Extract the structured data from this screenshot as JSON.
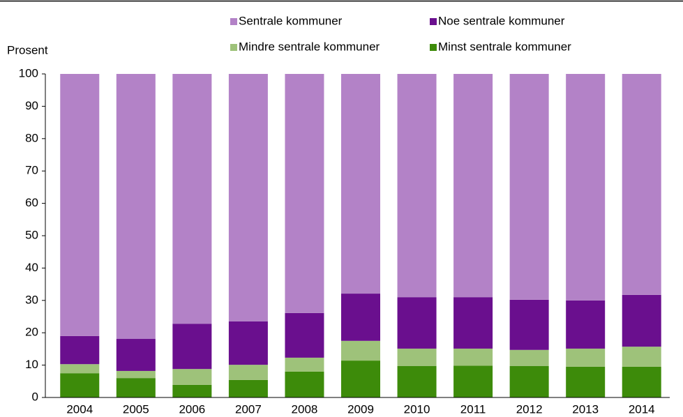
{
  "chart_data": {
    "type": "stacked_bar",
    "y_label": "Prosent",
    "categories": [
      "2004",
      "2005",
      "2006",
      "2007",
      "2008",
      "2009",
      "2010",
      "2011",
      "2012",
      "2013",
      "2014"
    ],
    "series": [
      {
        "name": "Sentrale kommuner",
        "color": "#b382c7",
        "values": [
          81.0,
          81.9,
          77.2,
          76.5,
          73.9,
          67.9,
          69.0,
          69.0,
          69.8,
          70.0,
          68.3
        ]
      },
      {
        "name": "Noe sentrale kommuner",
        "color": "#6a0f8e",
        "values": [
          8.7,
          9.9,
          14.0,
          13.4,
          13.8,
          14.6,
          15.9,
          15.9,
          15.5,
          14.9,
          16.0
        ]
      },
      {
        "name": "Mindre sentrale kommuner",
        "color": "#9ec27a",
        "values": [
          2.8,
          2.2,
          4.9,
          4.7,
          4.3,
          6.1,
          5.4,
          5.3,
          5.0,
          5.6,
          6.2
        ]
      },
      {
        "name": "Minst sentrale kommuner",
        "color": "#3d8b0a",
        "values": [
          7.5,
          6.0,
          3.9,
          5.4,
          8.0,
          11.4,
          9.7,
          9.8,
          9.7,
          9.5,
          9.5
        ]
      }
    ],
    "ylim": [
      0,
      100
    ],
    "yticks": [
      0,
      10,
      20,
      30,
      40,
      50,
      60,
      70,
      80,
      90,
      100
    ],
    "grid": false
  }
}
